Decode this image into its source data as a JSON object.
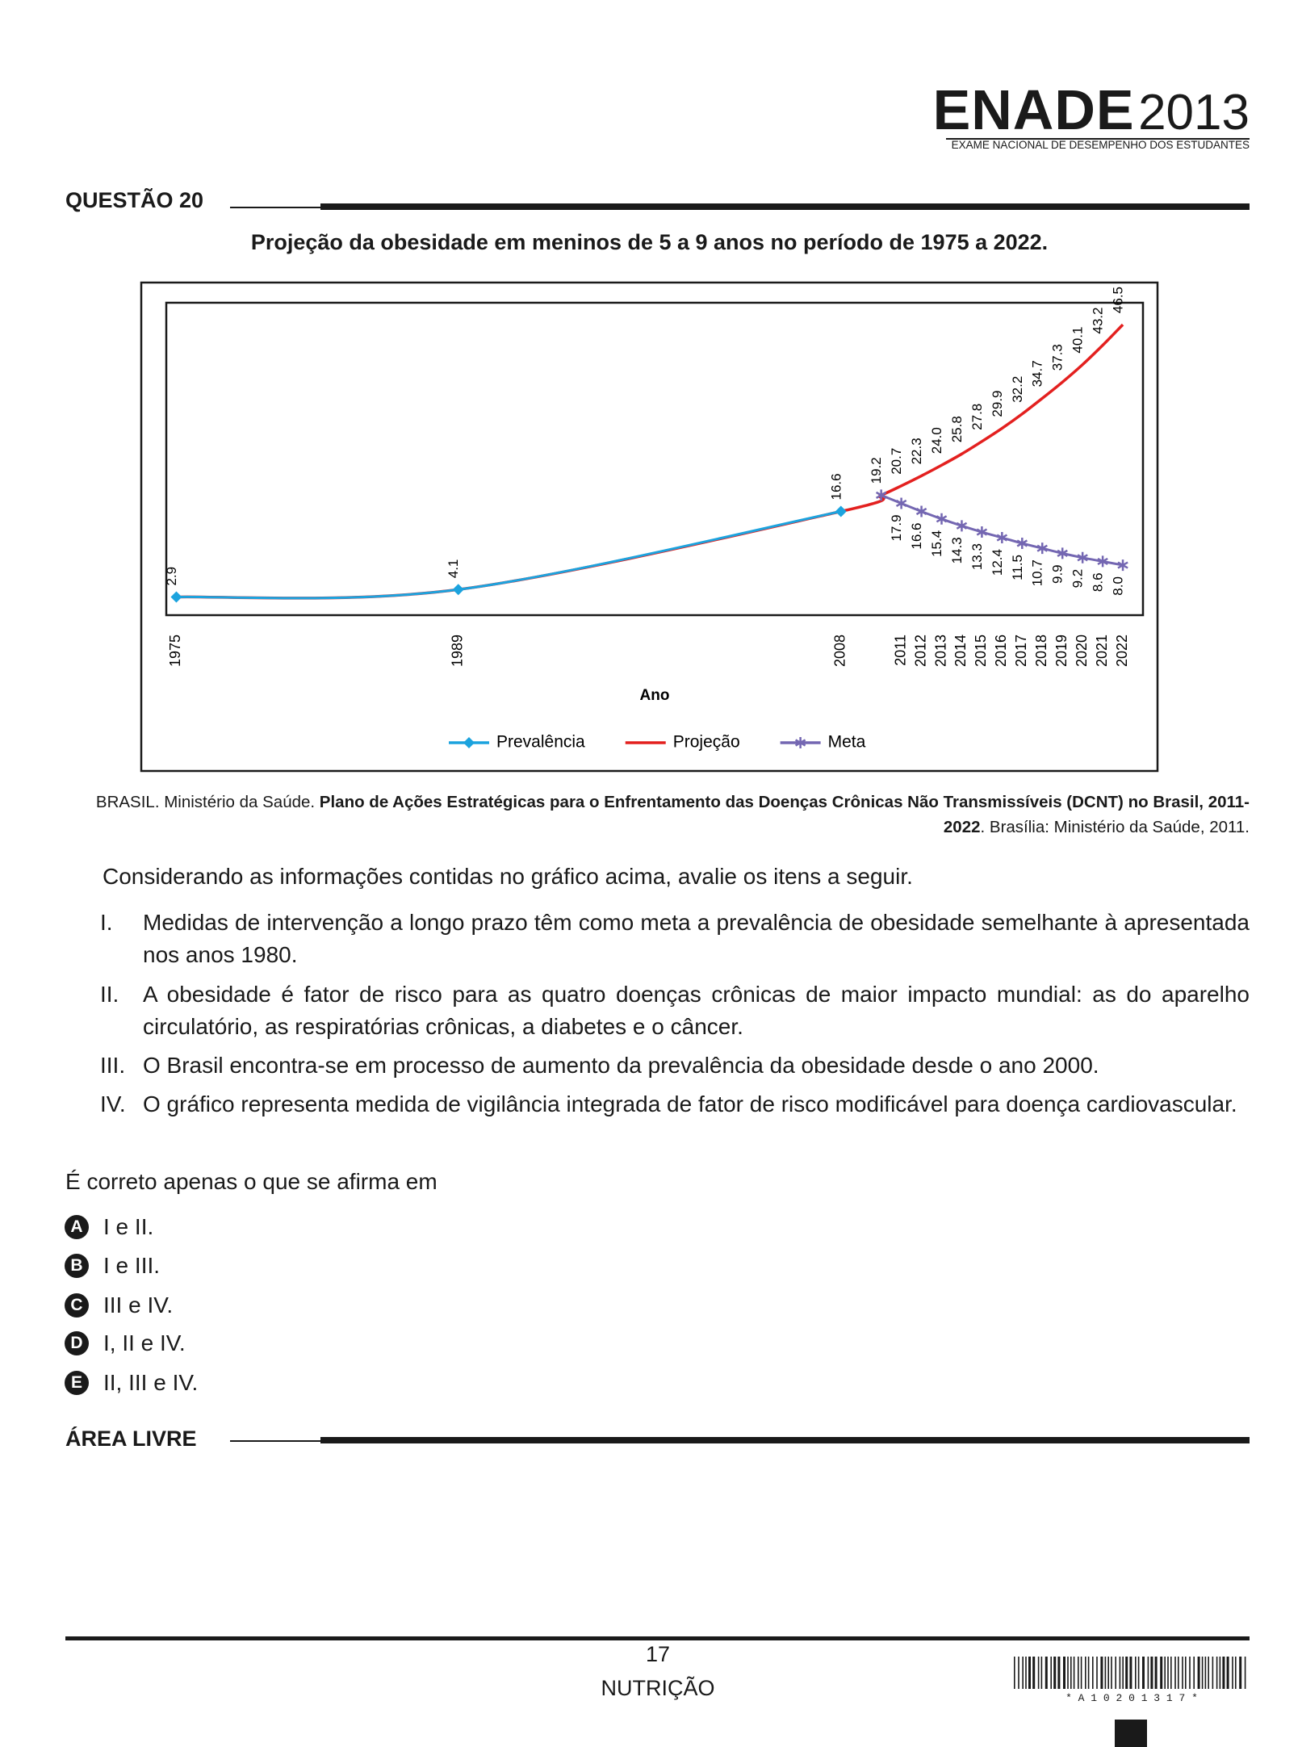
{
  "header": {
    "logo": "ENADE",
    "year": "2013",
    "subtitle": "EXAME NACIONAL DE DESEMPENHO DOS ESTUDANTES"
  },
  "question": {
    "label": "QUESTÃO 20"
  },
  "chart_data": {
    "type": "line",
    "title": "Projeção da obesidade em meninos de 5 a 9 anos no período de 1975 a 2022.",
    "x_label": "Ano",
    "xlim": [
      1974.5,
      2023
    ],
    "xticks": [
      1975,
      1989,
      2008,
      2011,
      2012,
      2013,
      2014,
      2015,
      2016,
      2017,
      2018,
      2019,
      2020,
      2021,
      2022
    ],
    "ylim": [
      0,
      50
    ],
    "grid": false,
    "legend": "bottom",
    "series": [
      {
        "name": "Prevalência",
        "color": "#1ca3de",
        "marker": "diamond",
        "label_position": "above",
        "x": [
          1975,
          1989,
          2008
        ],
        "values": [
          2.9,
          4.1,
          16.6
        ]
      },
      {
        "name": "Projeção",
        "color": "#e3201f",
        "marker": "none",
        "label_position": "above",
        "x": [
          1975,
          1989,
          2008,
          2010,
          2011,
          2012,
          2013,
          2014,
          2015,
          2016,
          2017,
          2018,
          2019,
          2020,
          2021,
          2022
        ],
        "values": [
          2.9,
          4.1,
          16.6,
          19.2,
          20.7,
          22.3,
          24.0,
          25.8,
          27.8,
          29.9,
          32.2,
          34.7,
          37.3,
          40.1,
          43.2,
          46.5
        ],
        "value_labels": [
          null,
          null,
          null,
          "19.2",
          "20.7",
          "22.3",
          "24.0",
          "25.8",
          "27.8",
          "29.9",
          "32.2",
          "34.7",
          "37.3",
          "40.1",
          "43.2",
          "46.5"
        ]
      },
      {
        "name": "Meta",
        "color": "#7467b2",
        "marker": "star",
        "label_position": "below",
        "x": [
          2010,
          2011,
          2012,
          2013,
          2014,
          2015,
          2016,
          2017,
          2018,
          2019,
          2020,
          2021,
          2022
        ],
        "values": [
          19.2,
          17.9,
          16.6,
          15.4,
          14.3,
          13.3,
          12.4,
          11.5,
          10.7,
          9.9,
          9.2,
          8.6,
          8.0
        ],
        "value_labels": [
          null,
          "17.9",
          "16.6",
          "15.4",
          "14.3",
          "13.3",
          "12.4",
          "11.5",
          "10.7",
          "9.9",
          "9.2",
          "8.6",
          "8.0"
        ]
      }
    ]
  },
  "source": {
    "prefix": "BRASIL. Ministério da Saúde. ",
    "title": "Plano de Ações Estratégicas para o Enfrentamento das Doenças Crônicas Não Transmissíveis (DCNT) no Brasil, 2011-2022",
    "suffix": ". Brasília: Ministério da Saúde, 2011."
  },
  "prompt": "Considerando as informações contidas no gráfico acima, avalie os itens a seguir.",
  "items": [
    {
      "numeral": "I.",
      "text": "Medidas de intervenção a longo prazo têm como meta a prevalência de obesidade semelhante à apresentada nos anos 1980."
    },
    {
      "numeral": "II.",
      "text": "A obesidade é fator de risco para as quatro doenças crônicas de maior impacto mundial: as do aparelho circulatório, as respiratórias crônicas, a diabetes e o câncer."
    },
    {
      "numeral": "III.",
      "text": "O Brasil encontra-se em processo de aumento da prevalência da obesidade desde o ano 2000."
    },
    {
      "numeral": "IV.",
      "text": "O gráfico representa medida de vigilância integrada de fator de risco modificável para doença cardiovascular."
    }
  ],
  "stem": "É correto apenas o que se afirma em",
  "options": [
    {
      "letter": "A",
      "text": "I e II."
    },
    {
      "letter": "B",
      "text": "I e III."
    },
    {
      "letter": "C",
      "text": "III e IV."
    },
    {
      "letter": "D",
      "text": "I, II e IV."
    },
    {
      "letter": "E",
      "text": "II, III e IV."
    }
  ],
  "free_area": "ÁREA LIVRE",
  "footer": {
    "page": "17",
    "course": "NUTRIÇÃO",
    "barcode_text": "* A 1 0 2 0 1 3 1 7 *"
  }
}
